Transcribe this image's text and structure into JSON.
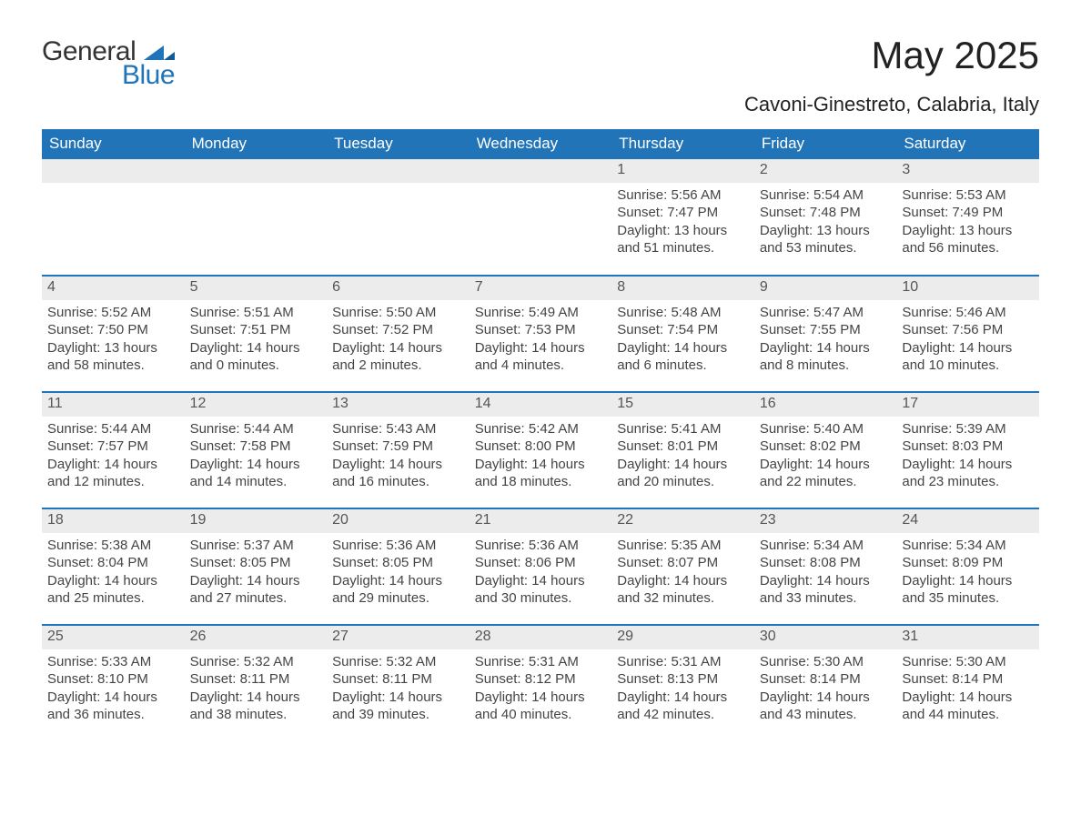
{
  "brand": {
    "word1": "General",
    "word2": "Blue",
    "color_text": "#333333",
    "color_blue": "#2174b8"
  },
  "title": {
    "month_year": "May 2025",
    "location": "Cavoni-Ginestreto, Calabria, Italy"
  },
  "theme": {
    "header_bg": "#2174b8",
    "header_text": "#ffffff",
    "row_divider": "#2174b8",
    "daynum_bg": "#ececec",
    "page_bg": "#ffffff",
    "text_color": "#444444",
    "title_fontsize_pt": 32,
    "location_fontsize_pt": 16,
    "header_fontsize_pt": 13,
    "body_fontsize_pt": 11
  },
  "weekdays": [
    "Sunday",
    "Monday",
    "Tuesday",
    "Wednesday",
    "Thursday",
    "Friday",
    "Saturday"
  ],
  "weeks": [
    [
      null,
      null,
      null,
      null,
      {
        "day": "1",
        "sunrise": "Sunrise: 5:56 AM",
        "sunset": "Sunset: 7:47 PM",
        "daylight1": "Daylight: 13 hours",
        "daylight2": "and 51 minutes."
      },
      {
        "day": "2",
        "sunrise": "Sunrise: 5:54 AM",
        "sunset": "Sunset: 7:48 PM",
        "daylight1": "Daylight: 13 hours",
        "daylight2": "and 53 minutes."
      },
      {
        "day": "3",
        "sunrise": "Sunrise: 5:53 AM",
        "sunset": "Sunset: 7:49 PM",
        "daylight1": "Daylight: 13 hours",
        "daylight2": "and 56 minutes."
      }
    ],
    [
      {
        "day": "4",
        "sunrise": "Sunrise: 5:52 AM",
        "sunset": "Sunset: 7:50 PM",
        "daylight1": "Daylight: 13 hours",
        "daylight2": "and 58 minutes."
      },
      {
        "day": "5",
        "sunrise": "Sunrise: 5:51 AM",
        "sunset": "Sunset: 7:51 PM",
        "daylight1": "Daylight: 14 hours",
        "daylight2": "and 0 minutes."
      },
      {
        "day": "6",
        "sunrise": "Sunrise: 5:50 AM",
        "sunset": "Sunset: 7:52 PM",
        "daylight1": "Daylight: 14 hours",
        "daylight2": "and 2 minutes."
      },
      {
        "day": "7",
        "sunrise": "Sunrise: 5:49 AM",
        "sunset": "Sunset: 7:53 PM",
        "daylight1": "Daylight: 14 hours",
        "daylight2": "and 4 minutes."
      },
      {
        "day": "8",
        "sunrise": "Sunrise: 5:48 AM",
        "sunset": "Sunset: 7:54 PM",
        "daylight1": "Daylight: 14 hours",
        "daylight2": "and 6 minutes."
      },
      {
        "day": "9",
        "sunrise": "Sunrise: 5:47 AM",
        "sunset": "Sunset: 7:55 PM",
        "daylight1": "Daylight: 14 hours",
        "daylight2": "and 8 minutes."
      },
      {
        "day": "10",
        "sunrise": "Sunrise: 5:46 AM",
        "sunset": "Sunset: 7:56 PM",
        "daylight1": "Daylight: 14 hours",
        "daylight2": "and 10 minutes."
      }
    ],
    [
      {
        "day": "11",
        "sunrise": "Sunrise: 5:44 AM",
        "sunset": "Sunset: 7:57 PM",
        "daylight1": "Daylight: 14 hours",
        "daylight2": "and 12 minutes."
      },
      {
        "day": "12",
        "sunrise": "Sunrise: 5:44 AM",
        "sunset": "Sunset: 7:58 PM",
        "daylight1": "Daylight: 14 hours",
        "daylight2": "and 14 minutes."
      },
      {
        "day": "13",
        "sunrise": "Sunrise: 5:43 AM",
        "sunset": "Sunset: 7:59 PM",
        "daylight1": "Daylight: 14 hours",
        "daylight2": "and 16 minutes."
      },
      {
        "day": "14",
        "sunrise": "Sunrise: 5:42 AM",
        "sunset": "Sunset: 8:00 PM",
        "daylight1": "Daylight: 14 hours",
        "daylight2": "and 18 minutes."
      },
      {
        "day": "15",
        "sunrise": "Sunrise: 5:41 AM",
        "sunset": "Sunset: 8:01 PM",
        "daylight1": "Daylight: 14 hours",
        "daylight2": "and 20 minutes."
      },
      {
        "day": "16",
        "sunrise": "Sunrise: 5:40 AM",
        "sunset": "Sunset: 8:02 PM",
        "daylight1": "Daylight: 14 hours",
        "daylight2": "and 22 minutes."
      },
      {
        "day": "17",
        "sunrise": "Sunrise: 5:39 AM",
        "sunset": "Sunset: 8:03 PM",
        "daylight1": "Daylight: 14 hours",
        "daylight2": "and 23 minutes."
      }
    ],
    [
      {
        "day": "18",
        "sunrise": "Sunrise: 5:38 AM",
        "sunset": "Sunset: 8:04 PM",
        "daylight1": "Daylight: 14 hours",
        "daylight2": "and 25 minutes."
      },
      {
        "day": "19",
        "sunrise": "Sunrise: 5:37 AM",
        "sunset": "Sunset: 8:05 PM",
        "daylight1": "Daylight: 14 hours",
        "daylight2": "and 27 minutes."
      },
      {
        "day": "20",
        "sunrise": "Sunrise: 5:36 AM",
        "sunset": "Sunset: 8:05 PM",
        "daylight1": "Daylight: 14 hours",
        "daylight2": "and 29 minutes."
      },
      {
        "day": "21",
        "sunrise": "Sunrise: 5:36 AM",
        "sunset": "Sunset: 8:06 PM",
        "daylight1": "Daylight: 14 hours",
        "daylight2": "and 30 minutes."
      },
      {
        "day": "22",
        "sunrise": "Sunrise: 5:35 AM",
        "sunset": "Sunset: 8:07 PM",
        "daylight1": "Daylight: 14 hours",
        "daylight2": "and 32 minutes."
      },
      {
        "day": "23",
        "sunrise": "Sunrise: 5:34 AM",
        "sunset": "Sunset: 8:08 PM",
        "daylight1": "Daylight: 14 hours",
        "daylight2": "and 33 minutes."
      },
      {
        "day": "24",
        "sunrise": "Sunrise: 5:34 AM",
        "sunset": "Sunset: 8:09 PM",
        "daylight1": "Daylight: 14 hours",
        "daylight2": "and 35 minutes."
      }
    ],
    [
      {
        "day": "25",
        "sunrise": "Sunrise: 5:33 AM",
        "sunset": "Sunset: 8:10 PM",
        "daylight1": "Daylight: 14 hours",
        "daylight2": "and 36 minutes."
      },
      {
        "day": "26",
        "sunrise": "Sunrise: 5:32 AM",
        "sunset": "Sunset: 8:11 PM",
        "daylight1": "Daylight: 14 hours",
        "daylight2": "and 38 minutes."
      },
      {
        "day": "27",
        "sunrise": "Sunrise: 5:32 AM",
        "sunset": "Sunset: 8:11 PM",
        "daylight1": "Daylight: 14 hours",
        "daylight2": "and 39 minutes."
      },
      {
        "day": "28",
        "sunrise": "Sunrise: 5:31 AM",
        "sunset": "Sunset: 8:12 PM",
        "daylight1": "Daylight: 14 hours",
        "daylight2": "and 40 minutes."
      },
      {
        "day": "29",
        "sunrise": "Sunrise: 5:31 AM",
        "sunset": "Sunset: 8:13 PM",
        "daylight1": "Daylight: 14 hours",
        "daylight2": "and 42 minutes."
      },
      {
        "day": "30",
        "sunrise": "Sunrise: 5:30 AM",
        "sunset": "Sunset: 8:14 PM",
        "daylight1": "Daylight: 14 hours",
        "daylight2": "and 43 minutes."
      },
      {
        "day": "31",
        "sunrise": "Sunrise: 5:30 AM",
        "sunset": "Sunset: 8:14 PM",
        "daylight1": "Daylight: 14 hours",
        "daylight2": "and 44 minutes."
      }
    ]
  ]
}
